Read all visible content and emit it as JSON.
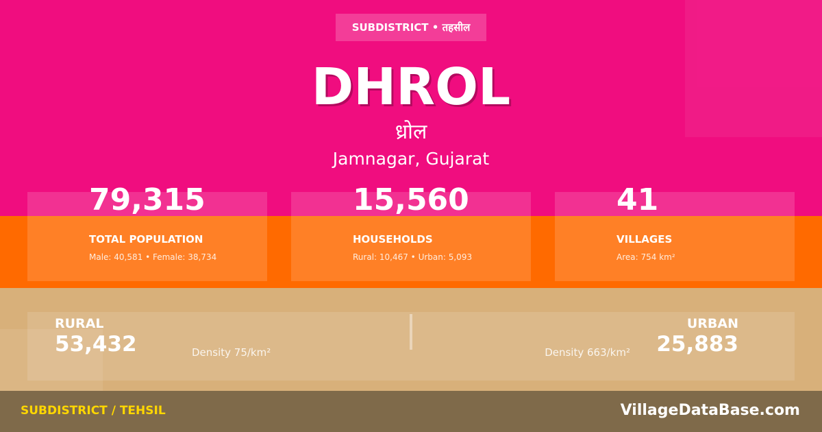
{
  "badge": "SUBDISTRICT • तहसील",
  "title": "DHROL",
  "title_native": "ध्रोल",
  "location": "Jamnagar, Gujarat",
  "stats": [
    {
      "value": "79,315",
      "label": "TOTAL POPULATION",
      "detail": "Male: 40,581 • Female: 38,734"
    },
    {
      "value": "15,560",
      "label": "HOUSEHOLDS",
      "detail": "Rural: 10,467 • Urban: 5,093"
    },
    {
      "value": "41",
      "label": "VILLAGES",
      "detail": "Area: 754 km²"
    }
  ],
  "rural": {
    "label": "RURAL",
    "value": "53,432",
    "density": "Density 75/km²"
  },
  "urban": {
    "label": "URBAN",
    "value": "25,883",
    "density": "Density 663/km²"
  },
  "footer": {
    "category": "SUBDISTRICT / TEHSIL",
    "site": "VillageDataBase.com"
  }
}
